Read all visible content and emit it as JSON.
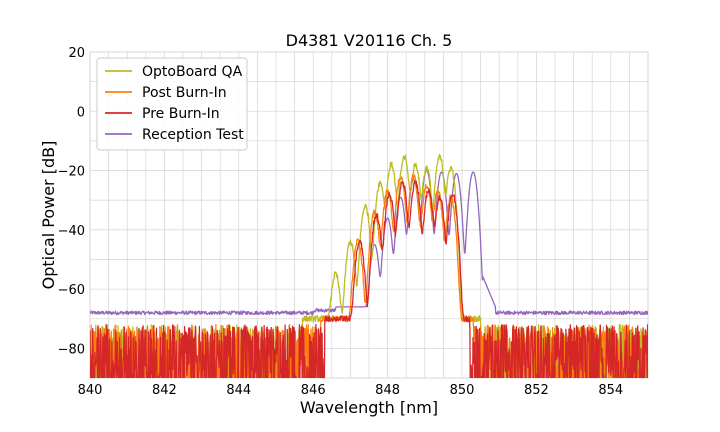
{
  "chart_data": {
    "type": "line",
    "title": "D4381 V20116 Ch. 5",
    "xlabel": "Wavelength [nm]",
    "ylabel": "Optical Power [dB]",
    "xlim": [
      840,
      855
    ],
    "ylim": [
      -90,
      20
    ],
    "xticks": [
      840,
      842,
      844,
      846,
      848,
      850,
      852,
      854
    ],
    "yticks": [
      20,
      0,
      -20,
      -40,
      -60,
      -80
    ],
    "xtick_labels": [
      "840",
      "842",
      "844",
      "846",
      "848",
      "850",
      "852",
      "854"
    ],
    "ytick_labels": [
      "20",
      "0",
      "−20",
      "−40",
      "−60",
      "−80"
    ],
    "grid": true,
    "legend_position": "top-left",
    "series": [
      {
        "name": "OptoBoard QA",
        "color": "#bcbd22",
        "noise_floor": -80,
        "band": [
          845.7,
          850.5
        ],
        "peaks": [
          {
            "x": 846.6,
            "y": -55
          },
          {
            "x": 847.0,
            "y": -44
          },
          {
            "x": 847.4,
            "y": -32
          },
          {
            "x": 847.8,
            "y": -24
          },
          {
            "x": 848.1,
            "y": -18
          },
          {
            "x": 848.45,
            "y": -15.5
          },
          {
            "x": 848.75,
            "y": -18
          },
          {
            "x": 849.05,
            "y": -19
          },
          {
            "x": 849.4,
            "y": -15.5
          },
          {
            "x": 849.7,
            "y": -19
          }
        ]
      },
      {
        "name": "Post Burn-In",
        "color": "#ff7f0e",
        "noise_floor": -80,
        "band": [
          846.2,
          850.3
        ],
        "peaks": [
          {
            "x": 847.2,
            "y": -44
          },
          {
            "x": 847.65,
            "y": -34
          },
          {
            "x": 848.0,
            "y": -27
          },
          {
            "x": 848.35,
            "y": -22
          },
          {
            "x": 848.7,
            "y": -22
          },
          {
            "x": 849.05,
            "y": -25
          },
          {
            "x": 849.35,
            "y": -27
          },
          {
            "x": 849.7,
            "y": -29
          }
        ]
      },
      {
        "name": "Pre Burn-In",
        "color": "#d62728",
        "noise_floor": -80,
        "band": [
          846.3,
          850.2
        ],
        "peaks": [
          {
            "x": 847.25,
            "y": -44
          },
          {
            "x": 847.7,
            "y": -35
          },
          {
            "x": 848.05,
            "y": -28
          },
          {
            "x": 848.4,
            "y": -24
          },
          {
            "x": 848.75,
            "y": -24
          },
          {
            "x": 849.1,
            "y": -27
          },
          {
            "x": 849.4,
            "y": -29
          },
          {
            "x": 849.75,
            "y": -28
          }
        ]
      },
      {
        "name": "Reception Test",
        "color": "#9467bd",
        "baseline": -68,
        "band": [
          846.6,
          850.9
        ],
        "peaks": [
          {
            "x": 847.65,
            "y": -45
          },
          {
            "x": 848.0,
            "y": -36
          },
          {
            "x": 848.35,
            "y": -29
          },
          {
            "x": 848.7,
            "y": -23
          },
          {
            "x": 849.05,
            "y": -20
          },
          {
            "x": 849.45,
            "y": -20.5
          },
          {
            "x": 849.85,
            "y": -21
          },
          {
            "x": 850.3,
            "y": -20.5
          }
        ]
      }
    ]
  }
}
